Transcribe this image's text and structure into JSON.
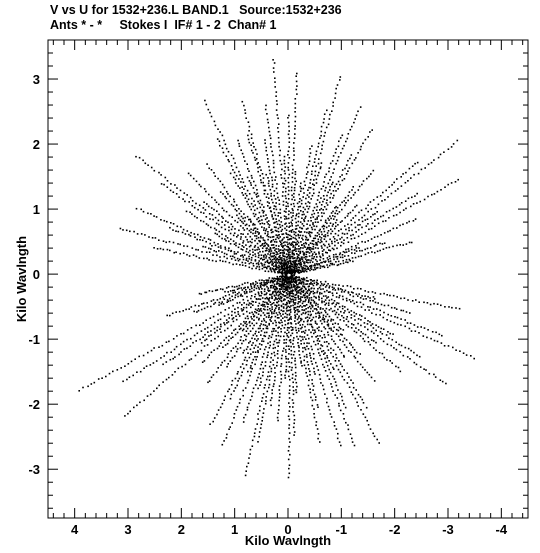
{
  "header": {
    "line1": "V vs U for 1532+236.L BAND.1   Source:1532+236",
    "line2": "Ants * - *     Stokes I  IF# 1 - 2  Chan# 1"
  },
  "chart_data": {
    "type": "scatter",
    "title": "V vs U for 1532+236.L BAND.1   Source:1532+236",
    "subtitle": "Ants * - *     Stokes I  IF# 1 - 2  Chan# 1",
    "xlabel": "Kilo Wavlngth",
    "ylabel": "Kilo Wavlngth",
    "xlim": [
      4.5,
      -4.5
    ],
    "ylim": [
      -3.75,
      3.6
    ],
    "x_ticks": [
      "4",
      "3",
      "2",
      "1",
      "0",
      "-1",
      "-2",
      "-3",
      "-4"
    ],
    "x_tick_values": [
      4,
      3,
      2,
      1,
      0,
      -1,
      -2,
      -3,
      -4
    ],
    "y_ticks": [
      "3",
      "2",
      "1",
      "0",
      "-1",
      "-2",
      "-3"
    ],
    "y_tick_values": [
      3,
      2,
      1,
      0,
      -1,
      -2,
      -3
    ],
    "grid": false,
    "marker_color": "#000000",
    "arms": [
      {
        "angle_deg": 90,
        "length": 3.55
      },
      {
        "angle_deg": 270,
        "length": 3.55
      },
      {
        "angle_deg": 30,
        "length": 4.3
      },
      {
        "angle_deg": 210,
        "length": 4.3
      },
      {
        "angle_deg": 150,
        "length": 3.4
      },
      {
        "angle_deg": 330,
        "length": 3.4
      },
      {
        "angle_deg": 60,
        "length": 2.9
      },
      {
        "angle_deg": 240,
        "length": 2.9
      },
      {
        "angle_deg": 120,
        "length": 3.3
      },
      {
        "angle_deg": 300,
        "length": 3.3
      },
      {
        "angle_deg": 15,
        "length": 2.7
      },
      {
        "angle_deg": 195,
        "length": 2.7
      },
      {
        "angle_deg": 165,
        "length": 3.7
      },
      {
        "angle_deg": 345,
        "length": 3.7
      },
      {
        "angle_deg": 75,
        "length": 3.2
      },
      {
        "angle_deg": 255,
        "length": 3.2
      },
      {
        "angle_deg": 105,
        "length": 2.8
      },
      {
        "angle_deg": 285,
        "length": 2.8
      },
      {
        "angle_deg": 45,
        "length": 2.4
      },
      {
        "angle_deg": 225,
        "length": 2.4
      },
      {
        "angle_deg": 135,
        "length": 2.6
      },
      {
        "angle_deg": 315,
        "length": 2.6
      }
    ]
  }
}
